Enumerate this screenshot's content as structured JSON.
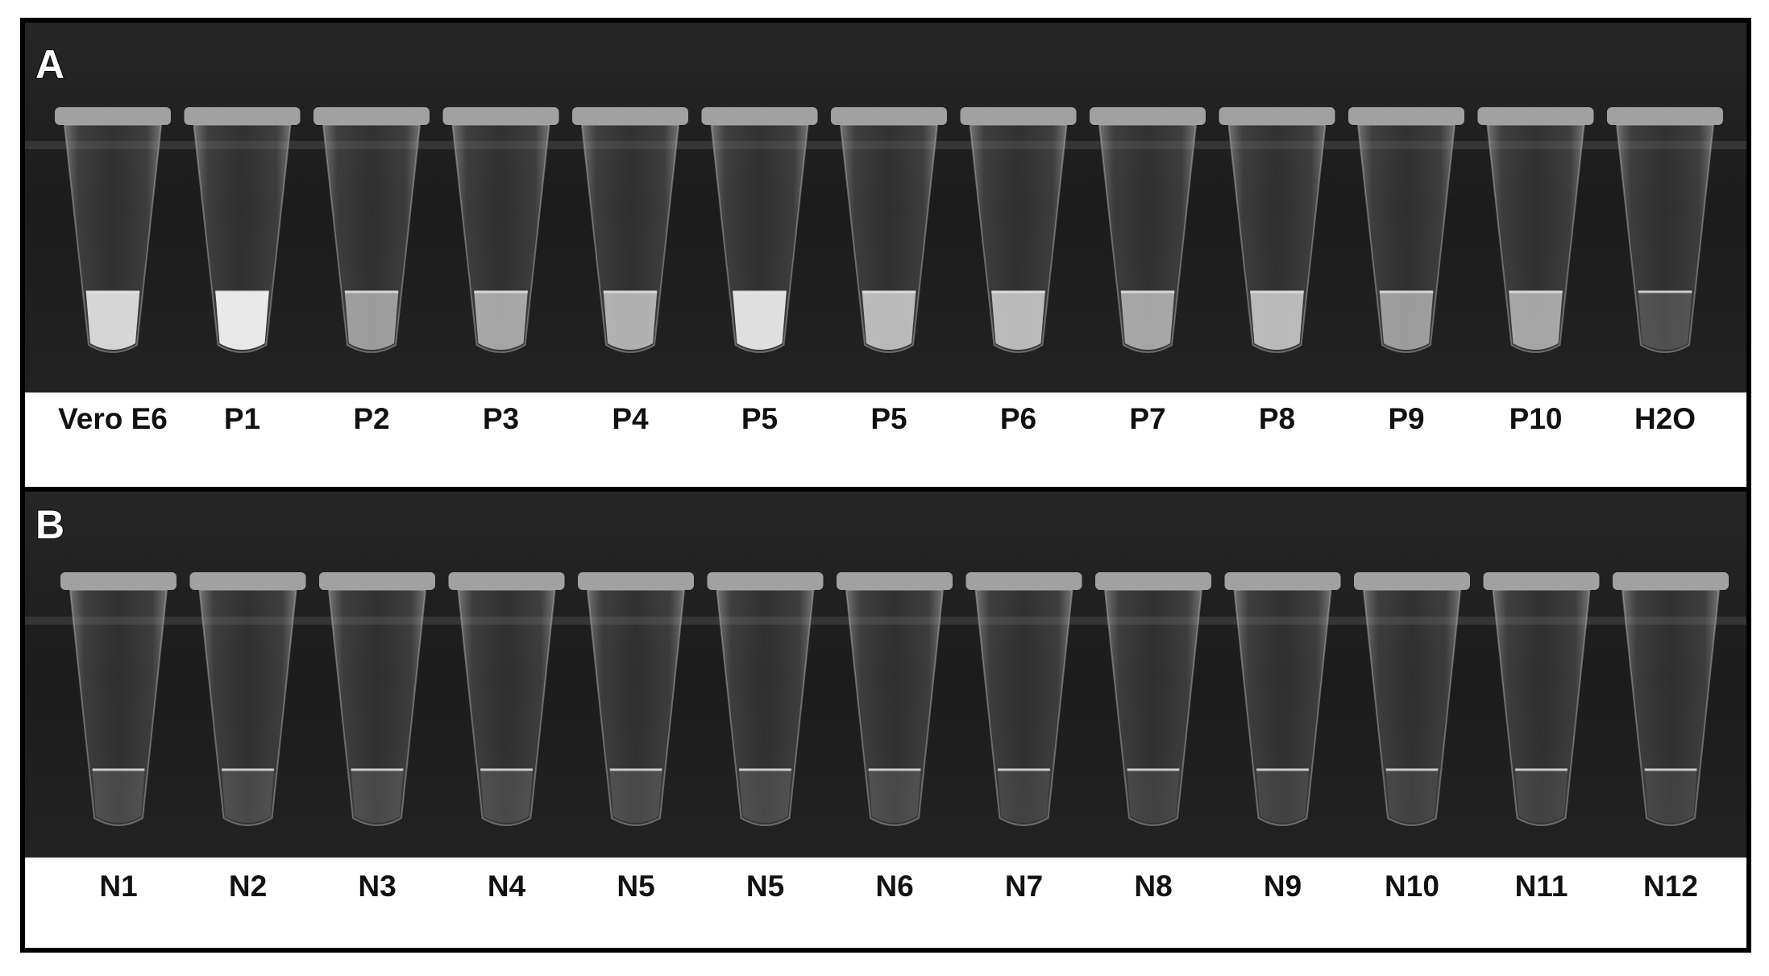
{
  "panels": [
    {
      "letter": "A",
      "labels": [
        "Vero E6",
        "P1",
        "P2",
        "P3",
        "P4",
        "P5",
        "P5",
        "P6",
        "P7",
        "P8",
        "P9",
        "P10",
        "H2O"
      ]
    },
    {
      "letter": "B",
      "labels": [
        "N1",
        "N2",
        "N3",
        "N4",
        "N5",
        "N5",
        "N6",
        "N7",
        "N8",
        "N9",
        "N10",
        "N11",
        "N12"
      ]
    }
  ]
}
